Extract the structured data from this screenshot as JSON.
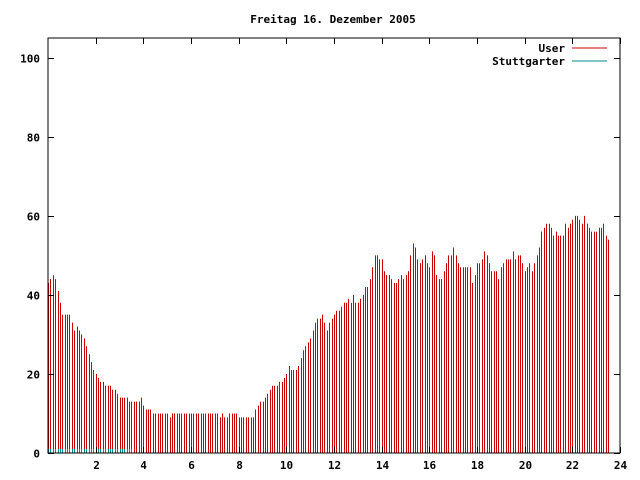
{
  "chart_data": {
    "type": "bar",
    "title": "Freitag 16. Dezember 2005",
    "xlabel": "",
    "ylabel": "",
    "xlim": [
      0,
      24
    ],
    "ylim": [
      0,
      105
    ],
    "x_ticks": [
      2,
      4,
      6,
      8,
      10,
      12,
      14,
      16,
      18,
      20,
      22,
      24
    ],
    "y_ticks": [
      0,
      20,
      40,
      60,
      80,
      100
    ],
    "grid": false,
    "legend_position": "top-right",
    "series": [
      {
        "name": "User",
        "color": "#cc0000",
        "sample_interval_hours": 0.1,
        "values": [
          43,
          44,
          45,
          44,
          41,
          38,
          35,
          35,
          35,
          35,
          33,
          31,
          32,
          31,
          30,
          29,
          27,
          25,
          23,
          21,
          20,
          19,
          18,
          18,
          17,
          17,
          17,
          16,
          16,
          15,
          14,
          14,
          14,
          14,
          13,
          13,
          13,
          13,
          13,
          14,
          12,
          11,
          11,
          11,
          10,
          10,
          10,
          10,
          10,
          10,
          10,
          9,
          10,
          10,
          10,
          10,
          10,
          10,
          10,
          10,
          10,
          10,
          10,
          10,
          10,
          10,
          10,
          10,
          10,
          10,
          10,
          10,
          9,
          10,
          9,
          9,
          10,
          10,
          10,
          10,
          9,
          9,
          9,
          9,
          9,
          9,
          9,
          11,
          12,
          13,
          13,
          14,
          15,
          16,
          17,
          17,
          17,
          18,
          18,
          19,
          20,
          22,
          21,
          21,
          21,
          22,
          24,
          26,
          27,
          28,
          29,
          31,
          33,
          34,
          34,
          35,
          33,
          31,
          33,
          34,
          35,
          36,
          36,
          37,
          38,
          38,
          39,
          38,
          40,
          38,
          38,
          39,
          40,
          42,
          42,
          44,
          47,
          50,
          50,
          49,
          49,
          46,
          45,
          45,
          44,
          43,
          43,
          44,
          45,
          44,
          45,
          46,
          50,
          53,
          52,
          49,
          48,
          49,
          50,
          48,
          47,
          51,
          50,
          45,
          44,
          44,
          46,
          48,
          50,
          50,
          52,
          50,
          48,
          47,
          47,
          47,
          47,
          47,
          43,
          45,
          48,
          48,
          49,
          51,
          50,
          48,
          46,
          46,
          46,
          44,
          47,
          48,
          49,
          49,
          49,
          51,
          49,
          50,
          50,
          48,
          46,
          47,
          48,
          46,
          48,
          50,
          52,
          56,
          57,
          58,
          58,
          57,
          55,
          56,
          55,
          55,
          55,
          58,
          57,
          58,
          59,
          60,
          60,
          59,
          58,
          60,
          58,
          57,
          56,
          56,
          56,
          57,
          57,
          58,
          55,
          54
        ]
      },
      {
        "name": "Stuttgarter",
        "color": "#008b8b",
        "sample_interval_hours": 0.1,
        "values": [
          1,
          1,
          1,
          1,
          1,
          1,
          1,
          1,
          1,
          1,
          1,
          1,
          1,
          1,
          1,
          1,
          1,
          1,
          1,
          1,
          1,
          1,
          1,
          1,
          1,
          1,
          1,
          1,
          1,
          1,
          1,
          1,
          1,
          1,
          1,
          1
        ]
      }
    ]
  }
}
